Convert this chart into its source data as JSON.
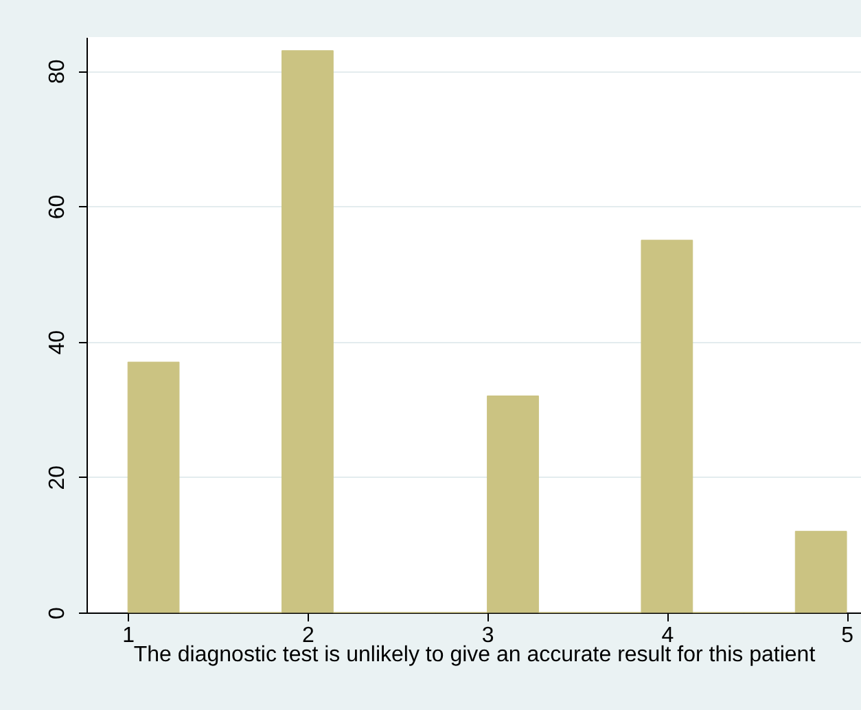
{
  "chart_data": {
    "type": "histogram",
    "xlabel": "The diagnostic test is unlikely to give an accurate result for this patient",
    "bins": [
      1,
      1.2857,
      1.5714,
      1.8571,
      2.1429,
      2.4286,
      2.7143,
      3,
      3.2857,
      3.5714,
      3.8571,
      4.1429,
      4.4286,
      4.7143,
      5
    ],
    "values": [
      37,
      0,
      0,
      83,
      0,
      0,
      0,
      32,
      0,
      0,
      55,
      0,
      0,
      12
    ],
    "color": "#cbc382",
    "xlim": [
      0.77,
      5.08
    ],
    "xticks": [
      1,
      2,
      3,
      4,
      5
    ],
    "ylim": [
      0,
      85
    ],
    "yticks": [
      0,
      20,
      40,
      60,
      80
    ],
    "grid": "y"
  }
}
